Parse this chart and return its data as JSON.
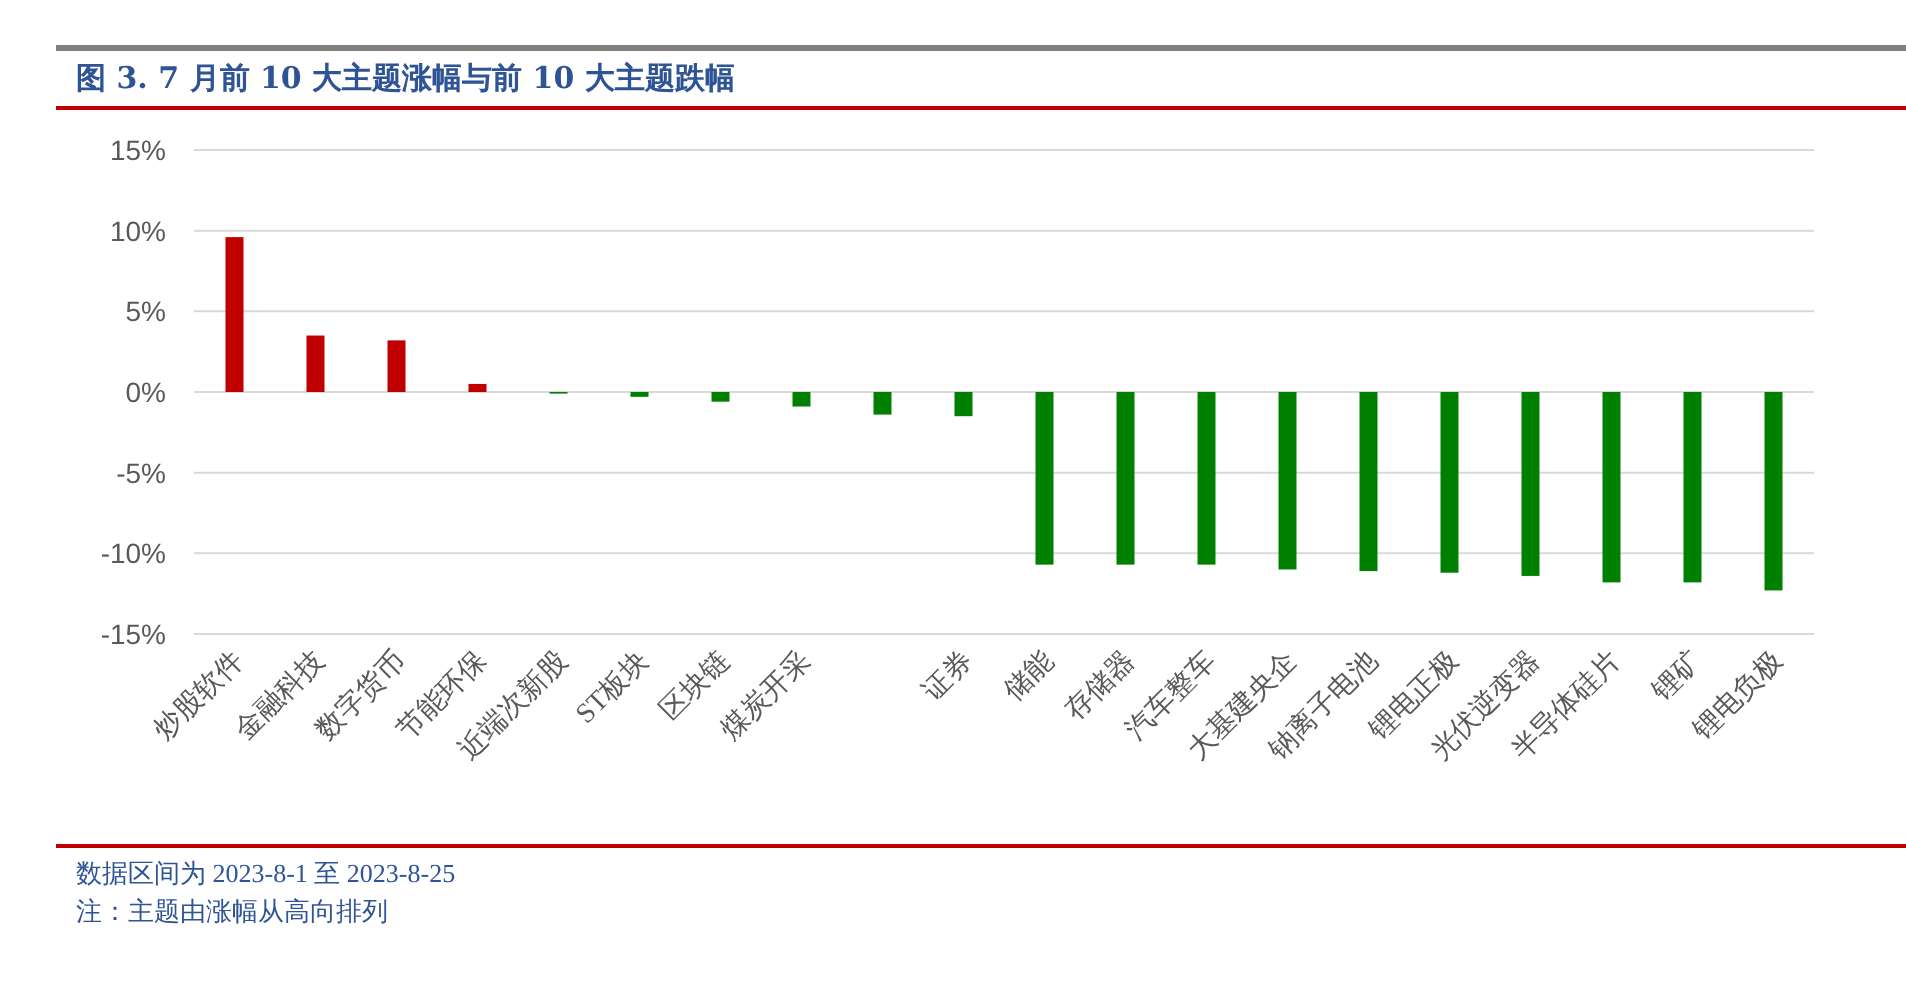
{
  "chart_data": {
    "type": "bar",
    "title": "图 3. 7 月前 10 大主题涨幅与前 10 大主题跌幅",
    "categories": [
      "炒股软件",
      "金融科技",
      "数字货币",
      "节能环保",
      "近端次新股",
      "ST板块",
      "区块链",
      "煤炭开采",
      null,
      "证券",
      "储能",
      "存储器",
      "汽车整车",
      "大基建央企",
      "钠离子电池",
      "锂电正极",
      "光伏逆变器",
      "半导体硅片",
      "锂矿",
      "锂电负极"
    ],
    "values": [
      9.6,
      3.5,
      3.2,
      0.5,
      -0.1,
      -0.3,
      -0.6,
      -0.9,
      -1.4,
      -1.5,
      -10.7,
      -10.7,
      -10.7,
      -11.0,
      -11.1,
      -11.2,
      -11.4,
      -11.8,
      -11.8,
      -12.3
    ],
    "colors": [
      "#c00000",
      "#c00000",
      "#c00000",
      "#c00000",
      "#008000",
      "#008000",
      "#008000",
      "#008000",
      "#008000",
      "#008000",
      "#008000",
      "#008000",
      "#008000",
      "#008000",
      "#008000",
      "#008000",
      "#008000",
      "#008000",
      "#008000",
      "#008000"
    ],
    "ylim": [
      -15,
      15
    ],
    "yticks": [
      {
        "value": -15,
        "label": "-15%"
      },
      {
        "value": -10,
        "label": "-10%"
      },
      {
        "value": -5,
        "label": "-5%"
      },
      {
        "value": 0,
        "label": "0%"
      },
      {
        "value": 5,
        "label": "5%"
      },
      {
        "value": 10,
        "label": "10%"
      },
      {
        "value": 15,
        "label": "15%"
      }
    ],
    "grid": "y",
    "annotations": [
      "数据区间为 2023-8-1 至 2023-8-25",
      "注：主题由涨幅从高向排列"
    ]
  }
}
